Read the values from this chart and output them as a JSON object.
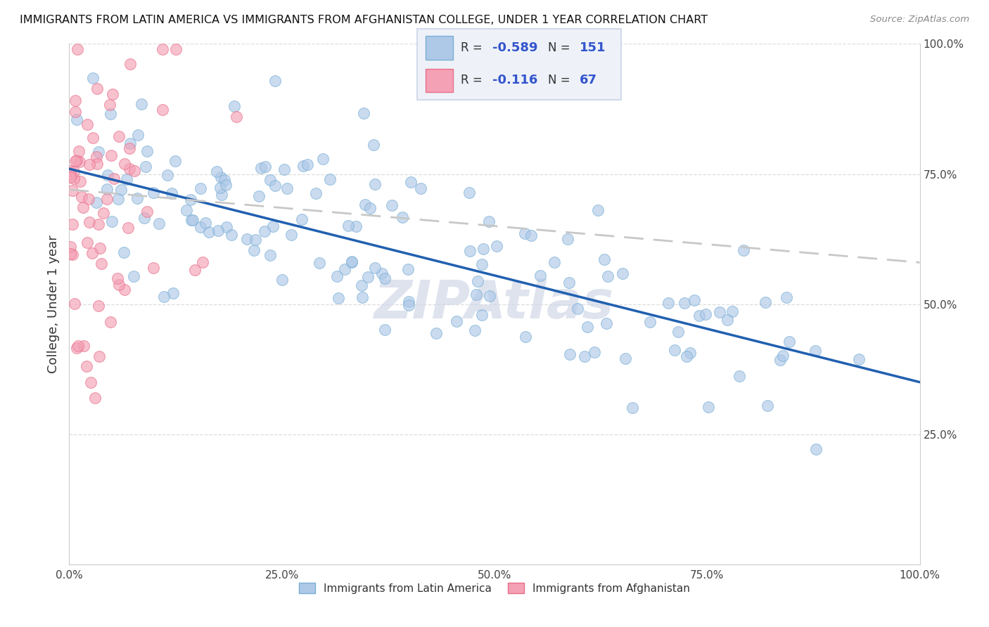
{
  "title": "IMMIGRANTS FROM LATIN AMERICA VS IMMIGRANTS FROM AFGHANISTAN COLLEGE, UNDER 1 YEAR CORRELATION CHART",
  "source": "Source: ZipAtlas.com",
  "ylabel": "College, Under 1 year",
  "watermark": "ZIPAtlas",
  "blue_scatter_color": "#aec8e8",
  "blue_scatter_edge": "#7aafd4",
  "pink_scatter_color": "#f4a0b5",
  "pink_scatter_edge": "#e8708a",
  "line_blue_color": "#2060b0",
  "line_pink_color": "#c8c8c8",
  "legend_box_color": "#e8eef8",
  "legend_border_color": "#b0c0d8",
  "R1": "-0.589",
  "N1": "151",
  "R2": "-0.116",
  "N2": "67",
  "xmin": 0.0,
  "xmax": 1.0,
  "ymin": 0.0,
  "ymax": 1.0,
  "blue_line_x0": 0.0,
  "blue_line_y0": 0.76,
  "blue_line_x1": 1.0,
  "blue_line_y1": 0.35,
  "pink_line_x0": 0.0,
  "pink_line_y0": 0.72,
  "pink_line_x1": 1.0,
  "pink_line_y1": 0.58,
  "seed": 99
}
